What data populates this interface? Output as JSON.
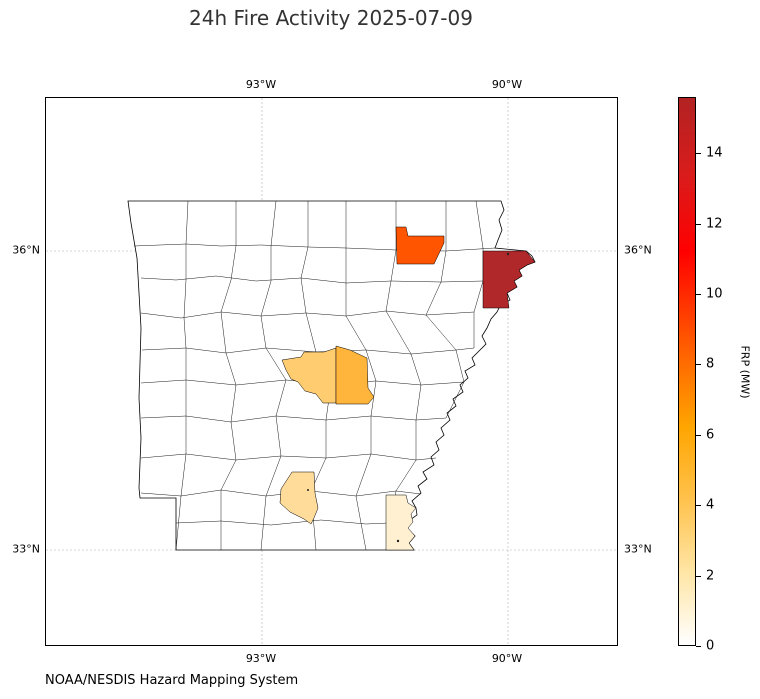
{
  "title": "24h Fire Activity 2025-07-09",
  "credit": "NOAA/NESDIS Hazard Mapping System",
  "map": {
    "lon_ticks": [
      "93°W",
      "90°W"
    ],
    "lat_ticks": [
      "36°N",
      "33°N"
    ],
    "gridlines": true,
    "counties_highlighted": [
      {
        "label": "north-central",
        "frp": 6.5,
        "color": "#ff5500"
      },
      {
        "label": "northeast",
        "frp": 15.5,
        "color": "#b0282a"
      },
      {
        "label": "central-west",
        "frp": 3.2,
        "color": "#ffcc70"
      },
      {
        "label": "central-east",
        "frp": 4.0,
        "color": "#ffb43c"
      },
      {
        "label": "south-central",
        "frp": 2.3,
        "color": "#ffdc99"
      },
      {
        "label": "southeast",
        "frp": 0.6,
        "color": "#fff0d2"
      }
    ]
  },
  "colorbar": {
    "label": "FRP (MW)",
    "ticks": [
      "0",
      "2",
      "4",
      "6",
      "8",
      "10",
      "12",
      "14"
    ],
    "min": 0,
    "max": 15.6,
    "colors": [
      "#ffffff",
      "#ffe6a8",
      "#ffa500",
      "#ff0000",
      "#b22222"
    ]
  }
}
